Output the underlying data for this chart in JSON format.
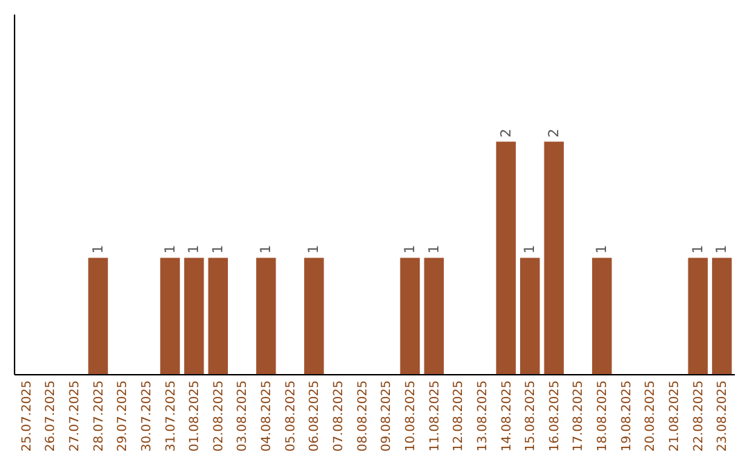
{
  "chart_data": {
    "type": "bar",
    "categories": [
      "25.07.2025",
      "26.07.2025",
      "27.07.2025",
      "28.07.2025",
      "29.07.2025",
      "30.07.2025",
      "31.07.2025",
      "01.08.2025",
      "02.08.2025",
      "03.08.2025",
      "04.08.2025",
      "05.08.2025",
      "06.08.2025",
      "07.08.2025",
      "08.08.2025",
      "09.08.2025",
      "10.08.2025",
      "11.08.2025",
      "12.08.2025",
      "13.08.2025",
      "14.08.2025",
      "15.08.2025",
      "16.08.2025",
      "17.08.2025",
      "18.08.2025",
      "19.08.2025",
      "20.08.2025",
      "21.08.2025",
      "22.08.2025",
      "23.08.2025"
    ],
    "values": [
      0,
      0,
      0,
      1,
      0,
      0,
      1,
      1,
      1,
      0,
      1,
      0,
      1,
      0,
      0,
      0,
      1,
      1,
      0,
      0,
      2,
      1,
      2,
      0,
      1,
      0,
      0,
      0,
      1,
      1
    ],
    "value_labels": [
      null,
      null,
      null,
      "1",
      null,
      null,
      "1",
      "1",
      "1",
      null,
      "1",
      null,
      "1",
      null,
      null,
      null,
      "1",
      "1",
      null,
      null,
      "2",
      "1",
      "2",
      null,
      "1",
      null,
      null,
      null,
      "1",
      "1"
    ],
    "color": "#a0522d",
    "ylim": [
      0,
      3.1
    ],
    "tick_labels": "x"
  }
}
